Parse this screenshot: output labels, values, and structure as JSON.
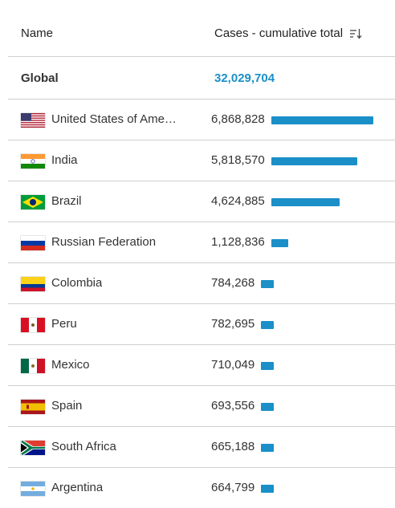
{
  "header": {
    "name_label": "Name",
    "cases_label": "Cases - cumulative total",
    "sort_icon": "sort-descending-icon"
  },
  "global": {
    "label": "Global",
    "value": "32,029,704"
  },
  "colors": {
    "accent": "#1a8fc8"
  },
  "rows": [
    {
      "country": "United States of America",
      "display": "United States of Ame…",
      "value": "6,868,828",
      "cases": 6868828,
      "flag": "us-flag-icon"
    },
    {
      "country": "India",
      "display": "India",
      "value": "5,818,570",
      "cases": 5818570,
      "flag": "india-flag-icon"
    },
    {
      "country": "Brazil",
      "display": "Brazil",
      "value": "4,624,885",
      "cases": 4624885,
      "flag": "brazil-flag-icon"
    },
    {
      "country": "Russian Federation",
      "display": "Russian Federation",
      "value": "1,128,836",
      "cases": 1128836,
      "flag": "russia-flag-icon"
    },
    {
      "country": "Colombia",
      "display": "Colombia",
      "value": "784,268",
      "cases": 784268,
      "flag": "colombia-flag-icon"
    },
    {
      "country": "Peru",
      "display": "Peru",
      "value": "782,695",
      "cases": 782695,
      "flag": "peru-flag-icon"
    },
    {
      "country": "Mexico",
      "display": "Mexico",
      "value": "710,049",
      "cases": 710049,
      "flag": "mexico-flag-icon"
    },
    {
      "country": "Spain",
      "display": "Spain",
      "value": "693,556",
      "cases": 693556,
      "flag": "spain-flag-icon"
    },
    {
      "country": "South Africa",
      "display": "South Africa",
      "value": "665,188",
      "cases": 665188,
      "flag": "south-africa-flag-icon"
    },
    {
      "country": "Argentina",
      "display": "Argentina",
      "value": "664,799",
      "cases": 664799,
      "flag": "argentina-flag-icon"
    }
  ]
}
